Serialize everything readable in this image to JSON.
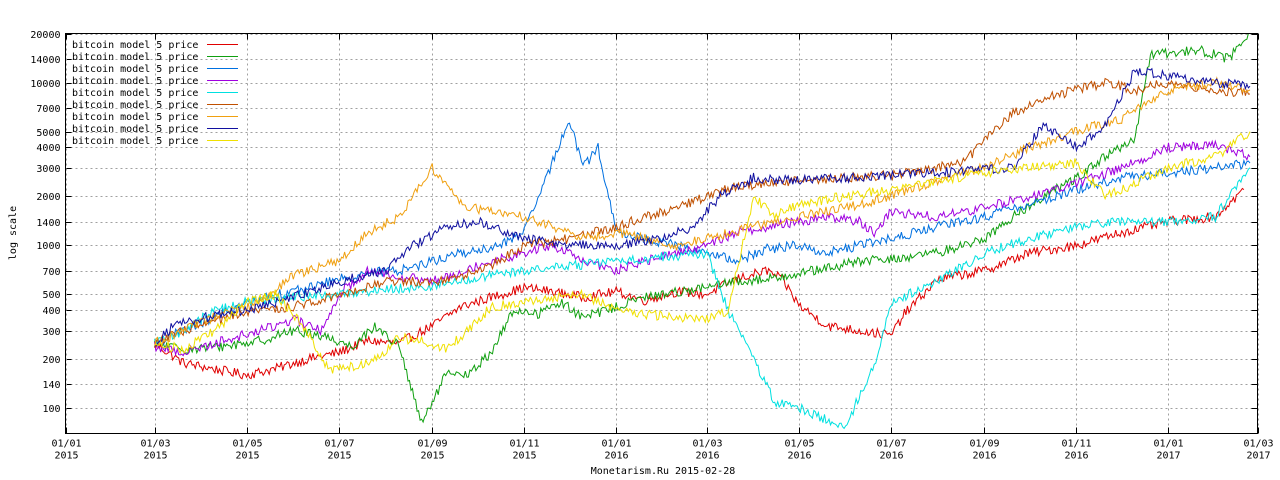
{
  "chart_data": {
    "type": "line",
    "title": "",
    "ylabel": "log scale",
    "xlabel": "Monetarism.Ru 2015-02-28",
    "y_scale": "log",
    "ylim": [
      70,
      20000
    ],
    "xlim": [
      "2015-01-01",
      "2017-03-01"
    ],
    "grid": true,
    "legend_position": "top-left",
    "y_ticks": [
      100,
      140,
      200,
      300,
      400,
      500,
      700,
      1000,
      1400,
      2000,
      3000,
      4000,
      5000,
      7000,
      10000,
      14000,
      20000
    ],
    "x_ticks": [
      {
        "date": "2015-01-01",
        "label": [
          "01/01",
          "2015"
        ]
      },
      {
        "date": "2015-03-01",
        "label": [
          "01/03",
          "2015"
        ]
      },
      {
        "date": "2015-05-01",
        "label": [
          "01/05",
          "2015"
        ]
      },
      {
        "date": "2015-07-01",
        "label": [
          "01/07",
          "2015"
        ]
      },
      {
        "date": "2015-09-01",
        "label": [
          "01/09",
          "2015"
        ]
      },
      {
        "date": "2015-11-01",
        "label": [
          "01/11",
          "2015"
        ]
      },
      {
        "date": "2016-01-01",
        "label": [
          "01/01",
          "2016"
        ]
      },
      {
        "date": "2016-03-01",
        "label": [
          "01/03",
          "2016"
        ]
      },
      {
        "date": "2016-05-01",
        "label": [
          "01/05",
          "2016"
        ]
      },
      {
        "date": "2016-07-01",
        "label": [
          "01/07",
          "2016"
        ]
      },
      {
        "date": "2016-09-01",
        "label": [
          "01/09",
          "2016"
        ]
      },
      {
        "date": "2016-11-01",
        "label": [
          "01/11",
          "2016"
        ]
      },
      {
        "date": "2017-01-01",
        "label": [
          "01/01",
          "2017"
        ]
      },
      {
        "date": "2017-03-01",
        "label": [
          "01/03",
          "2017"
        ]
      }
    ],
    "series": [
      {
        "name": "bitcoin model 5 price",
        "color": "#e00000",
        "x": [
          "2015-03-01",
          "2015-03-20",
          "2015-04-15",
          "2015-05-01",
          "2015-05-20",
          "2015-06-10",
          "2015-07-01",
          "2015-07-20",
          "2015-08-10",
          "2015-09-01",
          "2015-09-20",
          "2015-10-10",
          "2015-11-01",
          "2015-11-20",
          "2015-12-10",
          "2016-01-01",
          "2016-01-20",
          "2016-02-10",
          "2016-03-01",
          "2016-03-20",
          "2016-04-10",
          "2016-04-20",
          "2016-05-01",
          "2016-05-20",
          "2016-06-10",
          "2016-07-01",
          "2016-07-10",
          "2016-08-01",
          "2016-09-01",
          "2016-10-01",
          "2016-11-01",
          "2016-12-01",
          "2017-01-01",
          "2017-02-01",
          "2017-02-20"
        ],
        "y": [
          250,
          190,
          170,
          160,
          175,
          200,
          220,
          260,
          250,
          320,
          420,
          480,
          550,
          520,
          480,
          520,
          460,
          520,
          500,
          620,
          700,
          620,
          430,
          320,
          300,
          280,
          380,
          620,
          700,
          900,
          1000,
          1200,
          1400,
          1500,
          2200
        ]
      },
      {
        "name": "bitcoin model 5 price",
        "color": "#10a010",
        "x": [
          "2015-03-01",
          "2015-03-20",
          "2015-04-15",
          "2015-05-10",
          "2015-06-01",
          "2015-06-20",
          "2015-07-10",
          "2015-07-25",
          "2015-08-10",
          "2015-08-25",
          "2015-09-10",
          "2015-09-25",
          "2015-10-10",
          "2015-10-25",
          "2015-11-10",
          "2015-11-25",
          "2015-12-10",
          "2016-01-01",
          "2016-01-20",
          "2016-02-10",
          "2016-03-01",
          "2016-03-20",
          "2016-04-10",
          "2016-05-01",
          "2016-05-20",
          "2016-06-10",
          "2016-07-01",
          "2016-08-01",
          "2016-09-01",
          "2016-09-20",
          "2016-10-10",
          "2016-11-01",
          "2016-11-20",
          "2016-12-10",
          "2016-12-20",
          "2017-01-01",
          "2017-01-20",
          "2017-02-10",
          "2017-02-24"
        ],
        "y": [
          250,
          230,
          240,
          260,
          300,
          280,
          240,
          320,
          240,
          80,
          160,
          160,
          220,
          400,
          380,
          450,
          360,
          420,
          480,
          520,
          550,
          600,
          620,
          680,
          720,
          800,
          820,
          900,
          1100,
          1500,
          2000,
          2600,
          3500,
          4500,
          15000,
          15000,
          16000,
          14000,
          20000
        ]
      },
      {
        "name": "bitcoin model 5 price",
        "color": "#0070e0",
        "x": [
          "2015-03-01",
          "2015-03-20",
          "2015-04-15",
          "2015-05-10",
          "2015-06-01",
          "2015-07-01",
          "2015-07-20",
          "2015-08-10",
          "2015-09-01",
          "2015-09-20",
          "2015-10-10",
          "2015-11-01",
          "2015-11-15",
          "2015-12-01",
          "2015-12-10",
          "2015-12-20",
          "2016-01-01",
          "2016-01-20",
          "2016-02-10",
          "2016-03-01",
          "2016-03-20",
          "2016-04-10",
          "2016-05-01",
          "2016-05-20",
          "2016-06-10",
          "2016-07-01",
          "2016-08-01",
          "2016-09-01",
          "2016-10-01",
          "2016-11-01",
          "2016-12-01",
          "2017-01-01",
          "2017-02-01",
          "2017-02-24"
        ],
        "y": [
          250,
          300,
          380,
          480,
          520,
          620,
          680,
          700,
          800,
          900,
          950,
          1200,
          2500,
          6000,
          3000,
          4000,
          1200,
          1100,
          1000,
          900,
          800,
          950,
          1000,
          900,
          1000,
          1100,
          1300,
          1500,
          1800,
          2200,
          2600,
          2800,
          3000,
          3200
        ]
      },
      {
        "name": "bitcoin model 5 price",
        "color": "#a000e0",
        "x": [
          "2015-03-01",
          "2015-03-20",
          "2015-04-15",
          "2015-05-10",
          "2015-06-01",
          "2015-06-20",
          "2015-07-01",
          "2015-07-20",
          "2015-08-10",
          "2015-09-01",
          "2015-09-20",
          "2015-10-10",
          "2015-11-01",
          "2015-11-20",
          "2015-12-10",
          "2016-01-01",
          "2016-01-20",
          "2016-02-10",
          "2016-03-01",
          "2016-03-20",
          "2016-04-10",
          "2016-05-01",
          "2016-05-20",
          "2016-06-10",
          "2016-06-20",
          "2016-07-01",
          "2016-08-01",
          "2016-09-01",
          "2016-10-01",
          "2016-11-01",
          "2016-12-01",
          "2017-01-01",
          "2017-02-01",
          "2017-02-24"
        ],
        "y": [
          240,
          220,
          260,
          300,
          350,
          300,
          500,
          700,
          650,
          600,
          700,
          800,
          900,
          1000,
          800,
          700,
          800,
          900,
          1000,
          1200,
          1300,
          1400,
          1500,
          1400,
          1200,
          1600,
          1500,
          1700,
          2000,
          2400,
          3000,
          4000,
          4200,
          3500
        ]
      },
      {
        "name": "bitcoin model 5 price",
        "color": "#00e0e0",
        "x": [
          "2015-03-01",
          "2015-03-20",
          "2015-04-10",
          "2015-05-01",
          "2015-06-01",
          "2015-07-01",
          "2015-08-01",
          "2015-09-01",
          "2015-09-20",
          "2015-10-10",
          "2015-11-01",
          "2015-12-01",
          "2016-01-01",
          "2016-02-01",
          "2016-03-01",
          "2016-03-15",
          "2016-04-01",
          "2016-04-15",
          "2016-05-01",
          "2016-05-20",
          "2016-06-01",
          "2016-06-10",
          "2016-06-20",
          "2016-07-01",
          "2016-08-01",
          "2016-09-01",
          "2016-10-01",
          "2016-11-01",
          "2016-12-01",
          "2017-01-01",
          "2017-02-01",
          "2017-02-24"
        ],
        "y": [
          250,
          300,
          400,
          450,
          480,
          500,
          540,
          560,
          600,
          650,
          700,
          750,
          800,
          850,
          900,
          400,
          200,
          110,
          100,
          85,
          75,
          120,
          180,
          450,
          600,
          900,
          1100,
          1300,
          1400,
          1400,
          1500,
          3000
        ]
      },
      {
        "name": "bitcoin model 5 price",
        "color": "#c05000",
        "x": [
          "2015-03-01",
          "2015-03-20",
          "2015-04-15",
          "2015-05-10",
          "2015-06-01",
          "2015-07-01",
          "2015-08-01",
          "2015-09-01",
          "2015-09-20",
          "2015-10-10",
          "2015-11-01",
          "2015-12-01",
          "2016-01-01",
          "2016-01-20",
          "2016-02-10",
          "2016-03-01",
          "2016-03-20",
          "2016-04-10",
          "2016-05-01",
          "2016-06-01",
          "2016-07-01",
          "2016-08-01",
          "2016-08-20",
          "2016-09-01",
          "2016-09-20",
          "2016-10-10",
          "2016-11-01",
          "2016-11-20",
          "2016-12-10",
          "2017-01-01",
          "2017-02-01",
          "2017-02-24"
        ],
        "y": [
          250,
          300,
          350,
          400,
          420,
          500,
          600,
          600,
          650,
          750,
          1000,
          1100,
          1300,
          1500,
          1700,
          2000,
          2300,
          2400,
          2500,
          2600,
          2700,
          3000,
          3300,
          4500,
          6500,
          8000,
          9000,
          10000,
          9000,
          10000,
          9000,
          8500
        ]
      },
      {
        "name": "bitcoin model 5 price",
        "color": "#f0a010",
        "x": [
          "2015-03-01",
          "2015-03-20",
          "2015-04-15",
          "2015-05-10",
          "2015-06-01",
          "2015-07-01",
          "2015-07-20",
          "2015-08-10",
          "2015-09-01",
          "2015-09-20",
          "2015-10-10",
          "2015-11-01",
          "2015-11-20",
          "2015-12-10",
          "2016-01-01",
          "2016-01-20",
          "2016-02-10",
          "2016-03-01",
          "2016-04-01",
          "2016-05-01",
          "2016-06-01",
          "2016-07-01",
          "2016-08-01",
          "2016-09-01",
          "2016-10-01",
          "2016-11-01",
          "2016-12-01",
          "2017-01-01",
          "2017-02-01",
          "2017-02-24"
        ],
        "y": [
          250,
          300,
          380,
          450,
          650,
          800,
          1200,
          1500,
          3000,
          1800,
          1600,
          1500,
          1300,
          1100,
          1200,
          1100,
          1000,
          1100,
          1300,
          1500,
          1700,
          2000,
          2500,
          3000,
          4000,
          5000,
          6000,
          9000,
          10000,
          9000
        ]
      },
      {
        "name": "bitcoin model 5 price",
        "color": "#1010a0",
        "x": [
          "2015-03-01",
          "2015-03-15",
          "2015-04-15",
          "2015-05-10",
          "2015-06-01",
          "2015-07-01",
          "2015-08-01",
          "2015-08-20",
          "2015-09-10",
          "2015-10-01",
          "2015-11-01",
          "2015-12-01",
          "2016-01-01",
          "2016-02-01",
          "2016-02-20",
          "2016-03-10",
          "2016-04-01",
          "2016-05-01",
          "2016-06-01",
          "2016-07-01",
          "2016-08-01",
          "2016-09-01",
          "2016-09-20",
          "2016-10-10",
          "2016-11-01",
          "2016-11-20",
          "2016-12-10",
          "2017-01-01",
          "2017-02-01",
          "2017-02-24"
        ],
        "y": [
          250,
          330,
          380,
          420,
          480,
          600,
          700,
          1000,
          1300,
          1400,
          1100,
          1000,
          1000,
          1100,
          1300,
          2000,
          2600,
          2500,
          2600,
          2700,
          2800,
          2900,
          3000,
          5500,
          4000,
          5500,
          12000,
          11000,
          10000,
          9500
        ]
      },
      {
        "name": "bitcoin model 5 price",
        "color": "#f0e000",
        "x": [
          "2015-03-01",
          "2015-03-20",
          "2015-04-10",
          "2015-05-01",
          "2015-05-20",
          "2015-06-10",
          "2015-06-25",
          "2015-07-10",
          "2015-07-25",
          "2015-08-10",
          "2015-08-25",
          "2015-09-10",
          "2015-09-25",
          "2015-10-10",
          "2015-11-01",
          "2015-11-20",
          "2015-12-10",
          "2016-01-01",
          "2016-01-20",
          "2016-02-10",
          "2016-03-01",
          "2016-03-15",
          "2016-04-01",
          "2016-04-15",
          "2016-05-01",
          "2016-06-01",
          "2016-07-01",
          "2016-08-01",
          "2016-09-01",
          "2016-10-01",
          "2016-11-01",
          "2016-11-20",
          "2016-12-10",
          "2017-01-01",
          "2017-02-01",
          "2017-02-24"
        ],
        "y": [
          250,
          230,
          300,
          450,
          500,
          300,
          170,
          180,
          200,
          270,
          260,
          230,
          300,
          420,
          450,
          480,
          500,
          400,
          380,
          360,
          350,
          400,
          2000,
          1500,
          1800,
          2000,
          2200,
          2500,
          2800,
          3000,
          3200,
          2000,
          2400,
          3000,
          3500,
          5000
        ]
      }
    ]
  }
}
